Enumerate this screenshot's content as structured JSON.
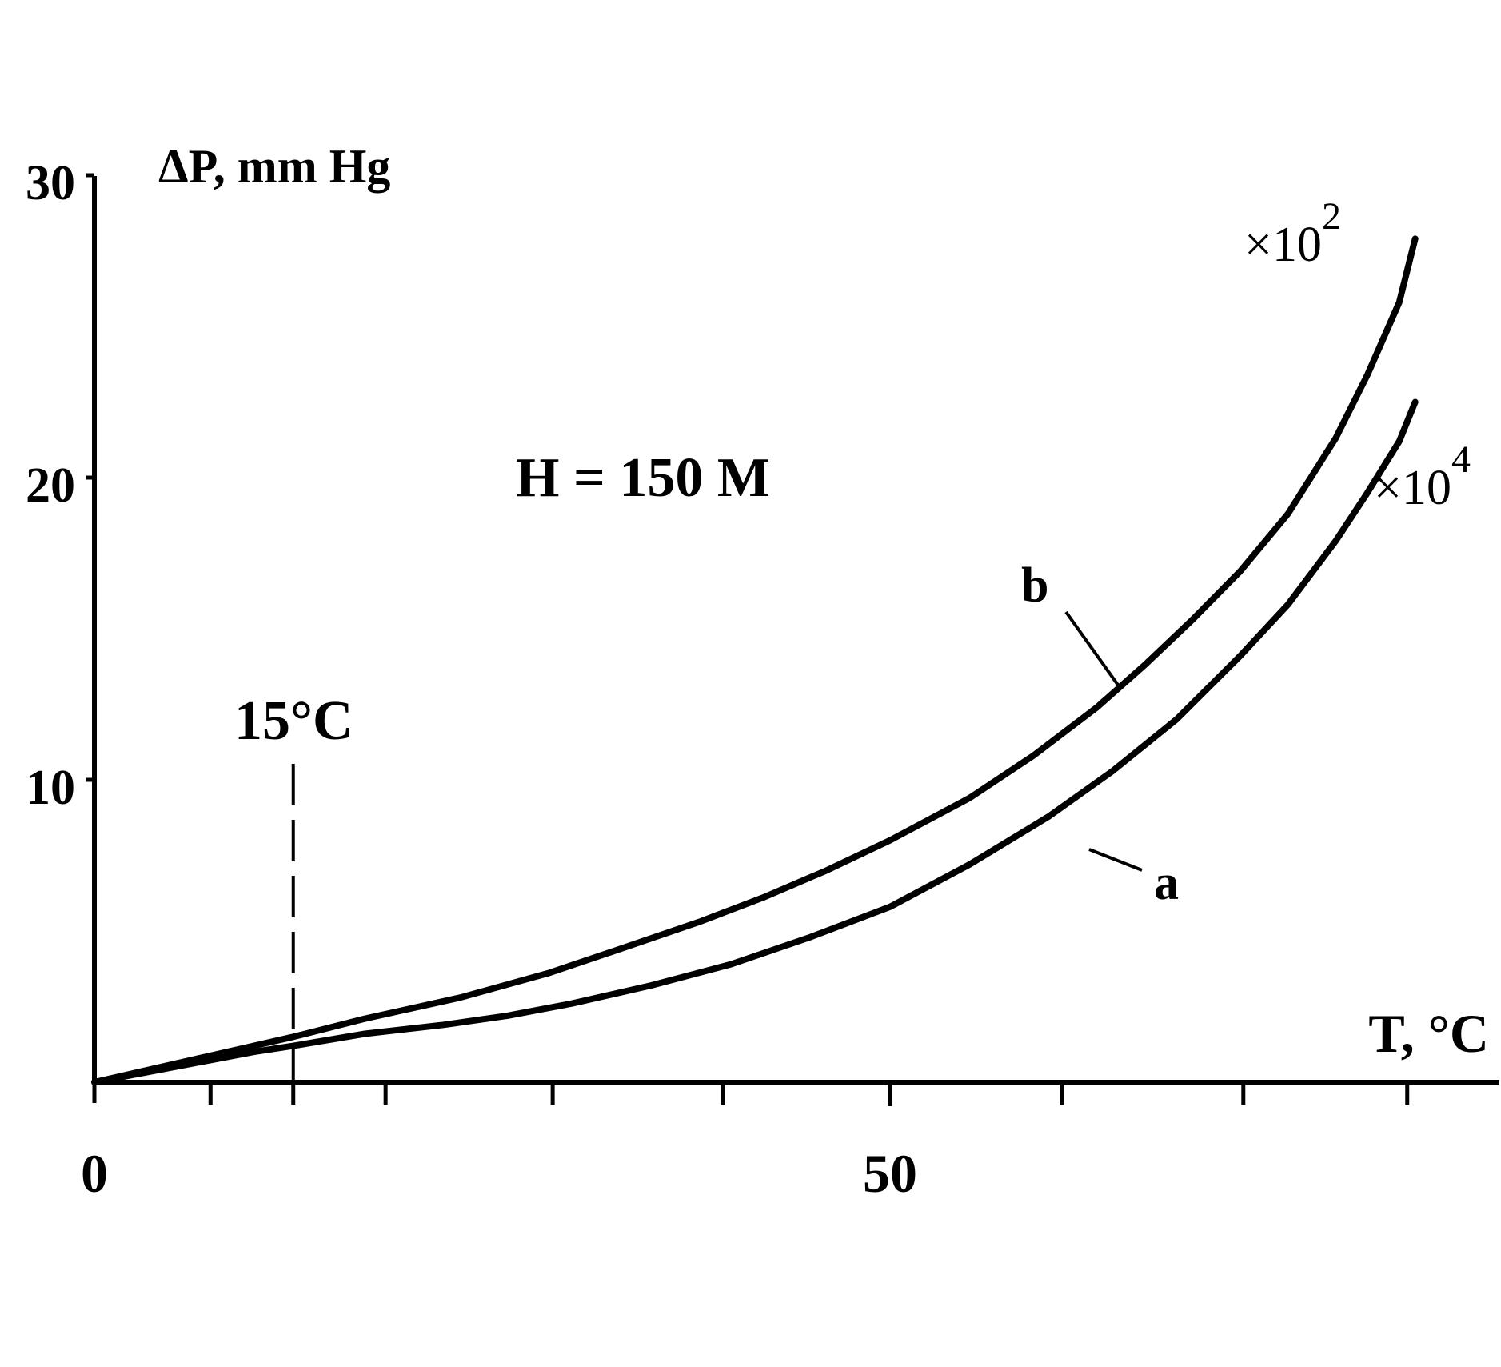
{
  "chart_data": {
    "type": "line",
    "ylabel": "ΔP, mm Hg",
    "xlabel": "T, °C",
    "annotation_condition": "H = 150 M",
    "reference_line": {
      "x": 12.5,
      "label": "15°C",
      "style": "dashed"
    },
    "xlim": [
      0,
      89
    ],
    "ylim": [
      0,
      30
    ],
    "x_ticks": [
      0,
      7.3,
      12.5,
      18.3,
      28.8,
      39.5,
      50,
      60.8,
      72.2,
      82.5
    ],
    "x_tick_labels": [
      {
        "x": 0,
        "label": "0"
      },
      {
        "x": 50,
        "label": "50"
      }
    ],
    "y_ticks": [
      0,
      10,
      20,
      30
    ],
    "y_tick_labels": [
      {
        "y": 10,
        "label": "10"
      },
      {
        "y": 20,
        "label": "20"
      },
      {
        "y": 30,
        "label": "30"
      }
    ],
    "series": [
      {
        "name": "b",
        "multiplier": "×10",
        "multiplier_exp": "2",
        "x": [
          0,
          5,
          10,
          12.5,
          17,
          23,
          28.5,
          33,
          38,
          42,
          46,
          50,
          55,
          59,
          63,
          66,
          69,
          72,
          75,
          78,
          80,
          82,
          83
        ],
        "y": [
          0,
          0.6,
          1.2,
          1.5,
          2.1,
          2.8,
          3.6,
          4.4,
          5.3,
          6.1,
          7.0,
          8.0,
          9.4,
          10.8,
          12.4,
          13.8,
          15.3,
          16.9,
          18.8,
          21.3,
          23.4,
          25.8,
          27.9
        ]
      },
      {
        "name": "a",
        "multiplier": "×10",
        "multiplier_exp": "4",
        "x": [
          0,
          5,
          10,
          12.5,
          17,
          22,
          26,
          30,
          35,
          40,
          45,
          50,
          55,
          60,
          64,
          68,
          72,
          75,
          78,
          80,
          82,
          83
        ],
        "y": [
          0,
          0.5,
          1.0,
          1.2,
          1.6,
          1.9,
          2.2,
          2.6,
          3.2,
          3.9,
          4.8,
          5.8,
          7.2,
          8.8,
          10.3,
          12.0,
          14.1,
          15.8,
          17.9,
          19.5,
          21.2,
          22.5
        ]
      }
    ],
    "grid": false,
    "legend": "none"
  }
}
